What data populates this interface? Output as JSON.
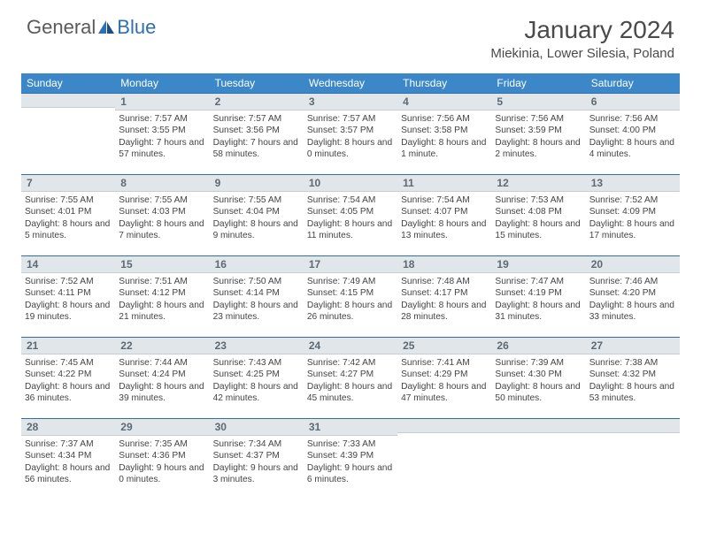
{
  "logo": {
    "text1": "General",
    "text2": "Blue"
  },
  "title": "January 2024",
  "location": "Miekinia, Lower Silesia, Poland",
  "colors": {
    "header_bg": "#3b87c8",
    "header_text": "#ffffff",
    "daynum_bg": "#e1e6ea",
    "daynum_border_top": "#2f6fb0",
    "daynum_text": "#5d6a74",
    "body_text": "#444444",
    "logo_gray": "#5a5a5a",
    "logo_blue": "#2f6fb0"
  },
  "weekdays": [
    "Sunday",
    "Monday",
    "Tuesday",
    "Wednesday",
    "Thursday",
    "Friday",
    "Saturday"
  ],
  "weeks": [
    [
      null,
      {
        "n": "1",
        "sr": "Sunrise: 7:57 AM",
        "ss": "Sunset: 3:55 PM",
        "dl": "Daylight: 7 hours and 57 minutes."
      },
      {
        "n": "2",
        "sr": "Sunrise: 7:57 AM",
        "ss": "Sunset: 3:56 PM",
        "dl": "Daylight: 7 hours and 58 minutes."
      },
      {
        "n": "3",
        "sr": "Sunrise: 7:57 AM",
        "ss": "Sunset: 3:57 PM",
        "dl": "Daylight: 8 hours and 0 minutes."
      },
      {
        "n": "4",
        "sr": "Sunrise: 7:56 AM",
        "ss": "Sunset: 3:58 PM",
        "dl": "Daylight: 8 hours and 1 minute."
      },
      {
        "n": "5",
        "sr": "Sunrise: 7:56 AM",
        "ss": "Sunset: 3:59 PM",
        "dl": "Daylight: 8 hours and 2 minutes."
      },
      {
        "n": "6",
        "sr": "Sunrise: 7:56 AM",
        "ss": "Sunset: 4:00 PM",
        "dl": "Daylight: 8 hours and 4 minutes."
      }
    ],
    [
      {
        "n": "7",
        "sr": "Sunrise: 7:55 AM",
        "ss": "Sunset: 4:01 PM",
        "dl": "Daylight: 8 hours and 5 minutes."
      },
      {
        "n": "8",
        "sr": "Sunrise: 7:55 AM",
        "ss": "Sunset: 4:03 PM",
        "dl": "Daylight: 8 hours and 7 minutes."
      },
      {
        "n": "9",
        "sr": "Sunrise: 7:55 AM",
        "ss": "Sunset: 4:04 PM",
        "dl": "Daylight: 8 hours and 9 minutes."
      },
      {
        "n": "10",
        "sr": "Sunrise: 7:54 AM",
        "ss": "Sunset: 4:05 PM",
        "dl": "Daylight: 8 hours and 11 minutes."
      },
      {
        "n": "11",
        "sr": "Sunrise: 7:54 AM",
        "ss": "Sunset: 4:07 PM",
        "dl": "Daylight: 8 hours and 13 minutes."
      },
      {
        "n": "12",
        "sr": "Sunrise: 7:53 AM",
        "ss": "Sunset: 4:08 PM",
        "dl": "Daylight: 8 hours and 15 minutes."
      },
      {
        "n": "13",
        "sr": "Sunrise: 7:52 AM",
        "ss": "Sunset: 4:09 PM",
        "dl": "Daylight: 8 hours and 17 minutes."
      }
    ],
    [
      {
        "n": "14",
        "sr": "Sunrise: 7:52 AM",
        "ss": "Sunset: 4:11 PM",
        "dl": "Daylight: 8 hours and 19 minutes."
      },
      {
        "n": "15",
        "sr": "Sunrise: 7:51 AM",
        "ss": "Sunset: 4:12 PM",
        "dl": "Daylight: 8 hours and 21 minutes."
      },
      {
        "n": "16",
        "sr": "Sunrise: 7:50 AM",
        "ss": "Sunset: 4:14 PM",
        "dl": "Daylight: 8 hours and 23 minutes."
      },
      {
        "n": "17",
        "sr": "Sunrise: 7:49 AM",
        "ss": "Sunset: 4:15 PM",
        "dl": "Daylight: 8 hours and 26 minutes."
      },
      {
        "n": "18",
        "sr": "Sunrise: 7:48 AM",
        "ss": "Sunset: 4:17 PM",
        "dl": "Daylight: 8 hours and 28 minutes."
      },
      {
        "n": "19",
        "sr": "Sunrise: 7:47 AM",
        "ss": "Sunset: 4:19 PM",
        "dl": "Daylight: 8 hours and 31 minutes."
      },
      {
        "n": "20",
        "sr": "Sunrise: 7:46 AM",
        "ss": "Sunset: 4:20 PM",
        "dl": "Daylight: 8 hours and 33 minutes."
      }
    ],
    [
      {
        "n": "21",
        "sr": "Sunrise: 7:45 AM",
        "ss": "Sunset: 4:22 PM",
        "dl": "Daylight: 8 hours and 36 minutes."
      },
      {
        "n": "22",
        "sr": "Sunrise: 7:44 AM",
        "ss": "Sunset: 4:24 PM",
        "dl": "Daylight: 8 hours and 39 minutes."
      },
      {
        "n": "23",
        "sr": "Sunrise: 7:43 AM",
        "ss": "Sunset: 4:25 PM",
        "dl": "Daylight: 8 hours and 42 minutes."
      },
      {
        "n": "24",
        "sr": "Sunrise: 7:42 AM",
        "ss": "Sunset: 4:27 PM",
        "dl": "Daylight: 8 hours and 45 minutes."
      },
      {
        "n": "25",
        "sr": "Sunrise: 7:41 AM",
        "ss": "Sunset: 4:29 PM",
        "dl": "Daylight: 8 hours and 47 minutes."
      },
      {
        "n": "26",
        "sr": "Sunrise: 7:39 AM",
        "ss": "Sunset: 4:30 PM",
        "dl": "Daylight: 8 hours and 50 minutes."
      },
      {
        "n": "27",
        "sr": "Sunrise: 7:38 AM",
        "ss": "Sunset: 4:32 PM",
        "dl": "Daylight: 8 hours and 53 minutes."
      }
    ],
    [
      {
        "n": "28",
        "sr": "Sunrise: 7:37 AM",
        "ss": "Sunset: 4:34 PM",
        "dl": "Daylight: 8 hours and 56 minutes."
      },
      {
        "n": "29",
        "sr": "Sunrise: 7:35 AM",
        "ss": "Sunset: 4:36 PM",
        "dl": "Daylight: 9 hours and 0 minutes."
      },
      {
        "n": "30",
        "sr": "Sunrise: 7:34 AM",
        "ss": "Sunset: 4:37 PM",
        "dl": "Daylight: 9 hours and 3 minutes."
      },
      {
        "n": "31",
        "sr": "Sunrise: 7:33 AM",
        "ss": "Sunset: 4:39 PM",
        "dl": "Daylight: 9 hours and 6 minutes."
      },
      null,
      null,
      null
    ]
  ]
}
